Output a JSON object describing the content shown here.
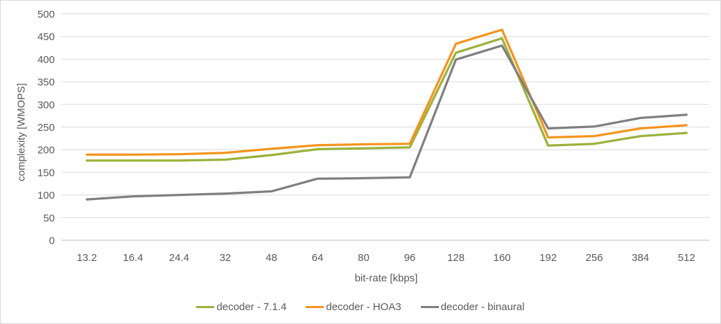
{
  "chart_data": {
    "type": "line",
    "title": "",
    "xlabel": "bit-rate [kbps]",
    "ylabel": "complexity [WMOPS]",
    "categories": [
      "13.2",
      "16.4",
      "24.4",
      "32",
      "48",
      "64",
      "80",
      "96",
      "128",
      "160",
      "192",
      "256",
      "384",
      "512"
    ],
    "yticks": [
      0,
      50,
      100,
      150,
      200,
      250,
      300,
      350,
      400,
      450,
      500
    ],
    "ylim": [
      0,
      500
    ],
    "grid": true,
    "legend_position": "bottom",
    "series": [
      {
        "name": "decoder - 7.1.4",
        "color": "#9AB23A",
        "values": [
          176,
          176,
          176,
          178,
          188,
          201,
          203,
          205,
          414,
          446,
          209,
          213,
          230,
          237
        ]
      },
      {
        "name": "decoder - HOA3",
        "color": "#F5941D",
        "values": [
          189,
          189,
          190,
          193,
          202,
          210,
          212,
          213,
          434,
          465,
          227,
          230,
          247,
          254
        ]
      },
      {
        "name": "decoder - binaural",
        "color": "#7F7F7F",
        "values": [
          90,
          97,
          100,
          103,
          108,
          136,
          137,
          139,
          399,
          430,
          247,
          251,
          270,
          277
        ]
      }
    ],
    "colors": {
      "gridline": "#D9D9D9",
      "axis_line": "#BFBFBF",
      "tick_label": "#595959",
      "axis_title": "#595959",
      "legend_text": "#595959",
      "background": "#FFFFFF",
      "border": "#D9D9D9"
    }
  }
}
